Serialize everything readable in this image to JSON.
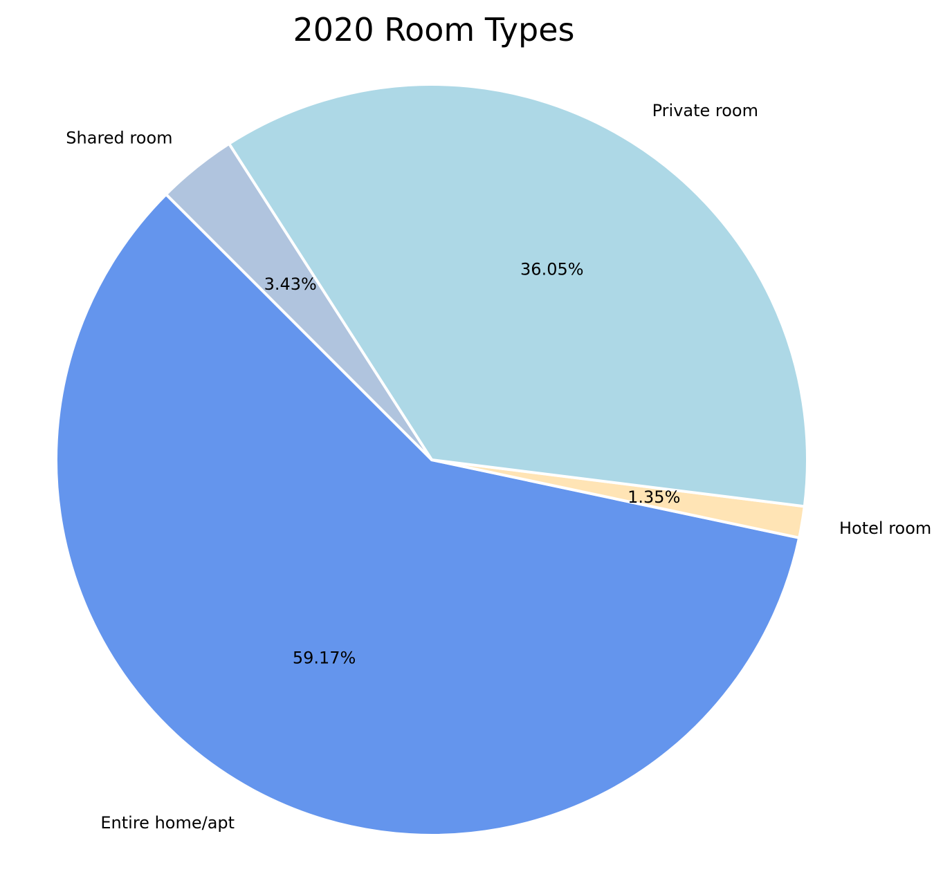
{
  "chart_data": {
    "type": "pie",
    "title": "2020 Room Types",
    "slices": [
      {
        "label": "Entire home/apt",
        "value": 59.17,
        "pct_label": "59.17%",
        "color": "#6495ED"
      },
      {
        "label": "Hotel room",
        "value": 1.35,
        "pct_label": "1.35%",
        "color": "#FFE4B5"
      },
      {
        "label": "Private room",
        "value": 36.05,
        "pct_label": "36.05%",
        "color": "#ADD8E6"
      },
      {
        "label": "Shared room",
        "value": 3.43,
        "pct_label": "3.43%",
        "color": "#B0C4DE"
      }
    ],
    "start_angle_deg": 135,
    "direction": "counterclockwise",
    "wedge_edge_color": "#FFFFFF",
    "legend": "none"
  }
}
